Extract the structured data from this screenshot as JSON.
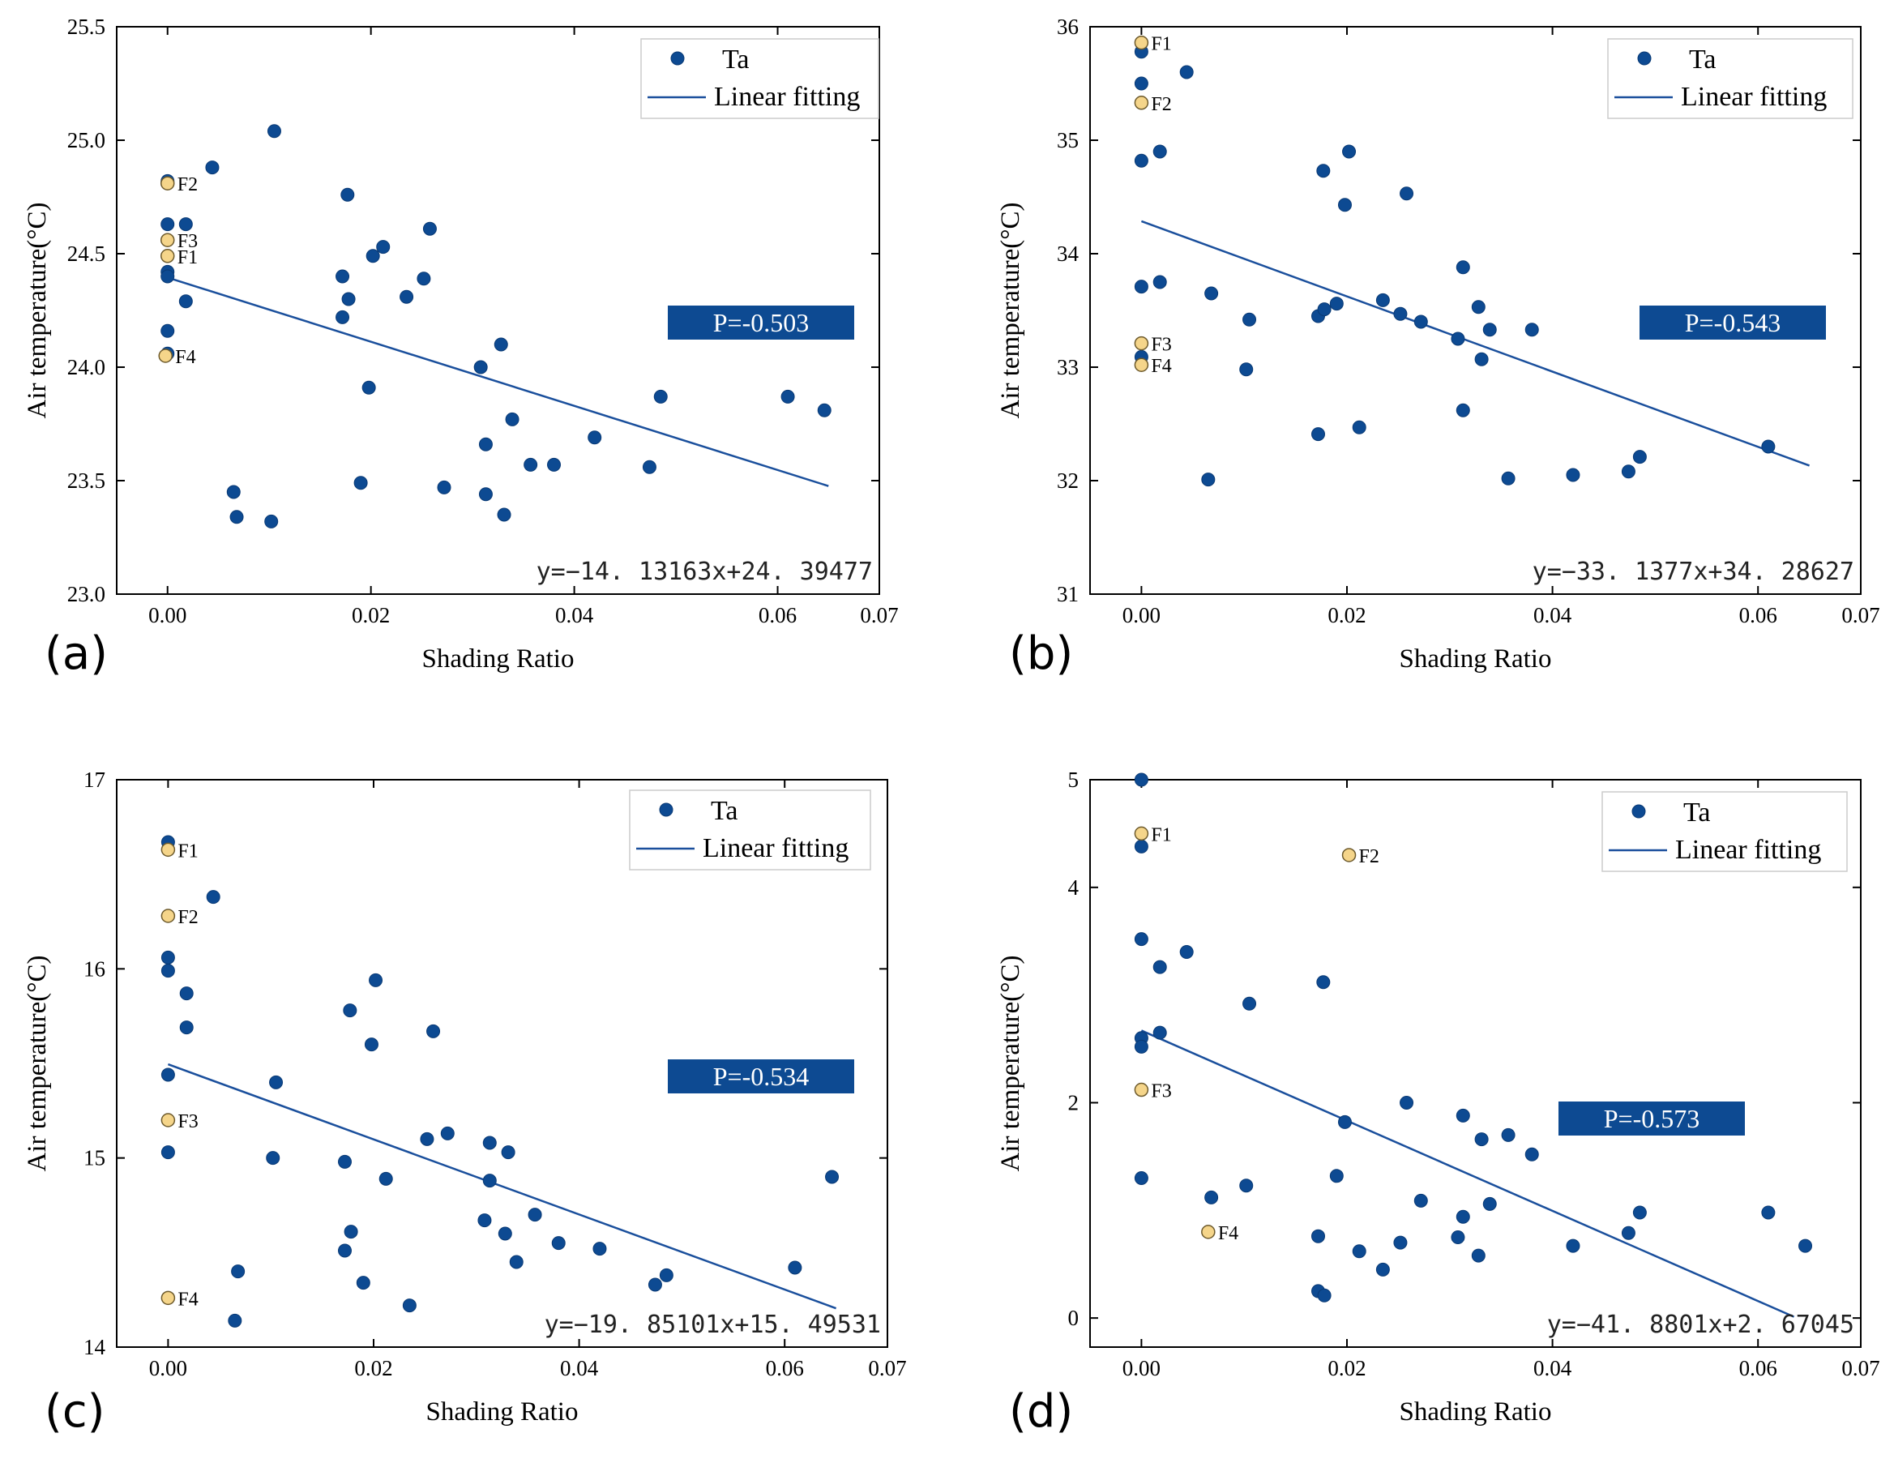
{
  "colors": {
    "point": "#0d4a92",
    "point_stroke": "#0a3a75",
    "highlight": "#f5d58a",
    "highlight_stroke": "#6d5a2c",
    "fit_line": "#1a4f9c",
    "pbox": "#0d4a92"
  },
  "chart_data": [
    {
      "type": "scatter",
      "panel_label": "(a)",
      "xlabel": "Shading Ratio",
      "ylabel": "Air temperature(°C)",
      "xlim": [
        -0.005,
        0.07
      ],
      "ylim": [
        23.0,
        25.5
      ],
      "xticks": [
        0.0,
        0.02,
        0.04,
        0.06,
        0.07
      ],
      "xtick_labels": [
        "0.00",
        "0.02",
        "0.04",
        "0.06",
        "0.07"
      ],
      "yticks": [
        23.0,
        23.5,
        24.0,
        24.5,
        25.0,
        25.5
      ],
      "ytick_labels": [
        "23.0",
        "23.5",
        "24.0",
        "24.5",
        "25.0",
        "25.5"
      ],
      "legend": {
        "marker_label": "Ta",
        "line_label": "Linear fitting",
        "position": "top-right"
      },
      "p_label": "P=-0.503",
      "equation": "y=−14. 13163x+24. 39477",
      "fit": {
        "slope": -14.13163,
        "intercept": 24.39477,
        "x_range": [
          0.0,
          0.065
        ]
      },
      "series": [
        {
          "name": "Ta",
          "points": [
            [
              0.0,
              24.82
            ],
            [
              0.0,
              24.63
            ],
            [
              0.0,
              24.42
            ],
            [
              0.0,
              24.4
            ],
            [
              0.0,
              24.16
            ],
            [
              0.0,
              24.06
            ],
            [
              0.0018,
              24.63
            ],
            [
              0.0018,
              24.29
            ],
            [
              0.0044,
              24.88
            ],
            [
              0.0065,
              23.45
            ],
            [
              0.0068,
              23.34
            ],
            [
              0.0102,
              23.32
            ],
            [
              0.0105,
              25.04
            ],
            [
              0.0172,
              24.4
            ],
            [
              0.0172,
              24.22
            ],
            [
              0.0177,
              24.76
            ],
            [
              0.0178,
              24.3
            ],
            [
              0.019,
              23.49
            ],
            [
              0.0198,
              23.91
            ],
            [
              0.0202,
              24.49
            ],
            [
              0.0212,
              24.53
            ],
            [
              0.0235,
              24.31
            ],
            [
              0.0252,
              24.39
            ],
            [
              0.0258,
              24.61
            ],
            [
              0.0272,
              23.47
            ],
            [
              0.0308,
              24.0
            ],
            [
              0.0313,
              23.44
            ],
            [
              0.0313,
              23.66
            ],
            [
              0.0328,
              24.1
            ],
            [
              0.0331,
              23.35
            ],
            [
              0.0339,
              23.77
            ],
            [
              0.0357,
              23.57
            ],
            [
              0.038,
              23.57
            ],
            [
              0.042,
              23.69
            ],
            [
              0.0474,
              23.56
            ],
            [
              0.0485,
              23.87
            ],
            [
              0.061,
              23.87
            ],
            [
              0.0646,
              23.81
            ]
          ]
        }
      ],
      "highlights": [
        {
          "label": "F1",
          "x": 0.0,
          "y": 24.49
        },
        {
          "label": "F2",
          "x": 0.0,
          "y": 24.81
        },
        {
          "label": "F3",
          "x": 0.0,
          "y": 24.56
        },
        {
          "label": "F4",
          "x": -0.0002,
          "y": 24.05
        }
      ]
    },
    {
      "type": "scatter",
      "panel_label": "(b)",
      "xlabel": "Shading Ratio",
      "ylabel": "Air temperature(°C)",
      "xlim": [
        -0.005,
        0.07
      ],
      "ylim": [
        31,
        36
      ],
      "xticks": [
        0.0,
        0.02,
        0.04,
        0.06,
        0.07
      ],
      "xtick_labels": [
        "0.00",
        "0.02",
        "0.04",
        "0.06",
        "0.07"
      ],
      "yticks": [
        31,
        32,
        33,
        34,
        35,
        36
      ],
      "ytick_labels": [
        "31",
        "32",
        "33",
        "34",
        "35",
        "36"
      ],
      "legend": {
        "marker_label": "Ta",
        "line_label": "Linear fitting",
        "position": "top-right"
      },
      "p_label": "P=-0.543",
      "equation": "y=−33. 1377x+34. 28627",
      "fit": {
        "slope": -33.1377,
        "intercept": 34.28627,
        "x_range": [
          0.0,
          0.065
        ]
      },
      "series": [
        {
          "name": "Ta",
          "points": [
            [
              0.0,
              35.78
            ],
            [
              0.0,
              35.5
            ],
            [
              0.0,
              34.82
            ],
            [
              0.0,
              33.71
            ],
            [
              0.0,
              33.09
            ],
            [
              0.0018,
              34.9
            ],
            [
              0.0018,
              33.75
            ],
            [
              0.0044,
              35.6
            ],
            [
              0.0065,
              32.01
            ],
            [
              0.0068,
              33.65
            ],
            [
              0.0102,
              32.98
            ],
            [
              0.0105,
              33.42
            ],
            [
              0.0172,
              33.45
            ],
            [
              0.0172,
              32.41
            ],
            [
              0.0177,
              34.73
            ],
            [
              0.0178,
              33.51
            ],
            [
              0.019,
              33.56
            ],
            [
              0.0198,
              34.43
            ],
            [
              0.0202,
              34.9
            ],
            [
              0.0212,
              32.47
            ],
            [
              0.0235,
              33.59
            ],
            [
              0.0252,
              33.47
            ],
            [
              0.0258,
              34.53
            ],
            [
              0.0272,
              33.4
            ],
            [
              0.0308,
              33.25
            ],
            [
              0.0313,
              33.88
            ],
            [
              0.0313,
              32.62
            ],
            [
              0.0328,
              33.53
            ],
            [
              0.0331,
              33.07
            ],
            [
              0.0339,
              33.33
            ],
            [
              0.0357,
              32.02
            ],
            [
              0.038,
              33.33
            ],
            [
              0.042,
              32.05
            ],
            [
              0.0474,
              32.08
            ],
            [
              0.0485,
              32.21
            ],
            [
              0.061,
              32.3
            ]
          ]
        }
      ],
      "highlights": [
        {
          "label": "F1",
          "x": 0.0,
          "y": 35.86
        },
        {
          "label": "F2",
          "x": 0.0,
          "y": 35.33
        },
        {
          "label": "F3",
          "x": 0.0,
          "y": 33.21
        },
        {
          "label": "F4",
          "x": 0.0,
          "y": 33.02
        }
      ]
    },
    {
      "type": "scatter",
      "panel_label": "(c)",
      "xlabel": "Shading Ratio",
      "ylabel": "Air temperature(°C)",
      "xlim": [
        -0.005,
        0.07
      ],
      "ylim": [
        14,
        17
      ],
      "xticks": [
        0.0,
        0.02,
        0.04,
        0.06,
        0.07
      ],
      "xtick_labels": [
        "0.00",
        "0.02",
        "0.04",
        "0.06",
        "0.07"
      ],
      "yticks": [
        14,
        15,
        16,
        17
      ],
      "ytick_labels": [
        "14",
        "15",
        "16",
        "17"
      ],
      "legend": {
        "marker_label": "Ta",
        "line_label": "Linear fitting",
        "position": "top-right"
      },
      "p_label": "P=-0.534",
      "equation": "y=−19. 85101x+15. 49531",
      "fit": {
        "slope": -19.85101,
        "intercept": 15.49531,
        "x_range": [
          0.0,
          0.065
        ]
      },
      "series": [
        {
          "name": "Ta",
          "points": [
            [
              0.0,
              16.67
            ],
            [
              0.0,
              16.06
            ],
            [
              0.0,
              15.99
            ],
            [
              0.0,
              15.44
            ],
            [
              0.0,
              15.03
            ],
            [
              0.0018,
              15.87
            ],
            [
              0.0018,
              15.69
            ],
            [
              0.0044,
              16.38
            ],
            [
              0.0065,
              14.14
            ],
            [
              0.0068,
              14.4
            ],
            [
              0.0102,
              15.0
            ],
            [
              0.0105,
              15.4
            ],
            [
              0.0172,
              14.98
            ],
            [
              0.0172,
              14.51
            ],
            [
              0.0177,
              15.78
            ],
            [
              0.0178,
              14.61
            ],
            [
              0.019,
              14.34
            ],
            [
              0.0198,
              15.6
            ],
            [
              0.0202,
              15.94
            ],
            [
              0.0212,
              14.89
            ],
            [
              0.0235,
              14.22
            ],
            [
              0.0252,
              15.1
            ],
            [
              0.0258,
              15.67
            ],
            [
              0.0272,
              15.13
            ],
            [
              0.0308,
              14.67
            ],
            [
              0.0313,
              15.08
            ],
            [
              0.0313,
              14.88
            ],
            [
              0.0328,
              14.6
            ],
            [
              0.0331,
              15.03
            ],
            [
              0.0339,
              14.45
            ],
            [
              0.0357,
              14.7
            ],
            [
              0.038,
              14.55
            ],
            [
              0.042,
              14.52
            ],
            [
              0.0474,
              14.33
            ],
            [
              0.0485,
              14.38
            ],
            [
              0.061,
              14.42
            ],
            [
              0.0646,
              14.9
            ]
          ]
        }
      ],
      "highlights": [
        {
          "label": "F1",
          "x": 0.0,
          "y": 16.63
        },
        {
          "label": "F2",
          "x": 0.0,
          "y": 16.28
        },
        {
          "label": "F3",
          "x": 0.0,
          "y": 15.2
        },
        {
          "label": "F4",
          "x": 0.0,
          "y": 14.26
        }
      ]
    },
    {
      "type": "scatter",
      "panel_label": "(d)",
      "xlabel": "Shading Ratio",
      "ylabel": "Air temperature(°C)",
      "xlim": [
        -0.005,
        0.07
      ],
      "ylim": [
        -0.27,
        5.0
      ],
      "xticks": [
        0.0,
        0.02,
        0.04,
        0.06,
        0.07
      ],
      "xtick_labels": [
        "0.00",
        "0.02",
        "0.04",
        "0.06",
        "0.07"
      ],
      "yticks": [
        0,
        2,
        4
      ],
      "ytick_labels": [
        "0",
        "2",
        "4"
      ],
      "top_label": "5",
      "legend": {
        "marker_label": "Ta",
        "line_label": "Linear fitting",
        "position": "top-right"
      },
      "p_label": "P=-0.573",
      "equation": "y=−41. 8801x+2. 67045",
      "fit": {
        "slope": -41.8801,
        "intercept": 2.67045,
        "x_range": [
          0.0,
          0.0635
        ]
      },
      "series": [
        {
          "name": "Ta",
          "points": [
            [
              0.0,
              5.0
            ],
            [
              0.0,
              4.38
            ],
            [
              0.0,
              3.52
            ],
            [
              0.0,
              2.6
            ],
            [
              0.0,
              2.52
            ],
            [
              0.0,
              1.3
            ],
            [
              0.0018,
              3.26
            ],
            [
              0.0018,
              2.65
            ],
            [
              0.0044,
              3.4
            ],
            [
              0.0068,
              1.12
            ],
            [
              0.0102,
              1.23
            ],
            [
              0.0105,
              2.92
            ],
            [
              0.0172,
              0.76
            ],
            [
              0.0172,
              0.25
            ],
            [
              0.0177,
              3.12
            ],
            [
              0.0178,
              0.21
            ],
            [
              0.019,
              1.32
            ],
            [
              0.0198,
              1.82
            ],
            [
              0.0212,
              0.62
            ],
            [
              0.0235,
              0.45
            ],
            [
              0.0252,
              0.7
            ],
            [
              0.0258,
              2.0
            ],
            [
              0.0272,
              1.09
            ],
            [
              0.0308,
              0.75
            ],
            [
              0.0313,
              1.88
            ],
            [
              0.0313,
              0.94
            ],
            [
              0.0328,
              0.58
            ],
            [
              0.0331,
              1.66
            ],
            [
              0.0339,
              1.06
            ],
            [
              0.0357,
              1.7
            ],
            [
              0.038,
              1.52
            ],
            [
              0.042,
              0.67
            ],
            [
              0.0474,
              0.79
            ],
            [
              0.0485,
              0.98
            ],
            [
              0.061,
              0.98
            ],
            [
              0.0646,
              0.67
            ]
          ]
        }
      ],
      "highlights": [
        {
          "label": "F1",
          "x": 0.0,
          "y": 4.5
        },
        {
          "label": "F2",
          "x": 0.0202,
          "y": 4.3
        },
        {
          "label": "F3",
          "x": 0.0,
          "y": 2.12
        },
        {
          "label": "F4",
          "x": 0.0065,
          "y": 0.8
        }
      ]
    }
  ]
}
